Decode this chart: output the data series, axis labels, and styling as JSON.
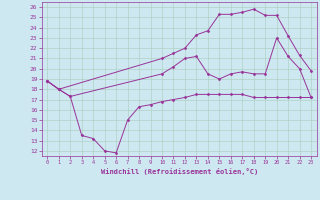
{
  "xlabel": "Windchill (Refroidissement éolien,°C)",
  "background_color": "#cde8f0",
  "grid_color": "#aaccbb",
  "line_color": "#993399",
  "xlim": [
    -0.5,
    23.5
  ],
  "ylim": [
    11.5,
    26.5
  ],
  "xticks": [
    0,
    1,
    2,
    3,
    4,
    5,
    6,
    7,
    8,
    9,
    10,
    11,
    12,
    13,
    14,
    15,
    16,
    17,
    18,
    19,
    20,
    21,
    22,
    23
  ],
  "yticks": [
    12,
    13,
    14,
    15,
    16,
    17,
    18,
    19,
    20,
    21,
    22,
    23,
    24,
    25,
    26
  ],
  "line1_x": [
    0,
    1,
    2,
    3,
    4,
    5,
    6,
    7,
    8,
    9,
    10,
    11,
    12,
    13,
    14,
    15,
    16,
    17,
    18,
    19,
    20,
    21,
    22,
    23
  ],
  "line1_y": [
    18.8,
    18.0,
    17.3,
    13.5,
    13.2,
    12.0,
    11.8,
    15.0,
    16.3,
    16.5,
    16.8,
    17.0,
    17.2,
    17.5,
    17.5,
    17.5,
    17.5,
    17.5,
    17.2,
    17.2,
    17.2,
    17.2,
    17.2,
    17.2
  ],
  "line2_x": [
    0,
    1,
    2,
    10,
    11,
    12,
    13,
    14,
    15,
    16,
    17,
    18,
    19,
    20,
    21,
    22,
    23
  ],
  "line2_y": [
    18.8,
    18.0,
    17.3,
    19.5,
    20.2,
    21.0,
    21.2,
    19.5,
    19.0,
    19.5,
    19.7,
    19.5,
    19.5,
    23.0,
    21.2,
    20.0,
    17.2
  ],
  "line3_x": [
    0,
    1,
    10,
    11,
    12,
    13,
    14,
    15,
    16,
    17,
    18,
    19,
    20,
    21,
    22,
    23
  ],
  "line3_y": [
    18.8,
    18.0,
    21.0,
    21.5,
    22.0,
    23.3,
    23.7,
    25.3,
    25.3,
    25.5,
    25.8,
    25.2,
    25.2,
    23.2,
    21.3,
    19.8
  ]
}
